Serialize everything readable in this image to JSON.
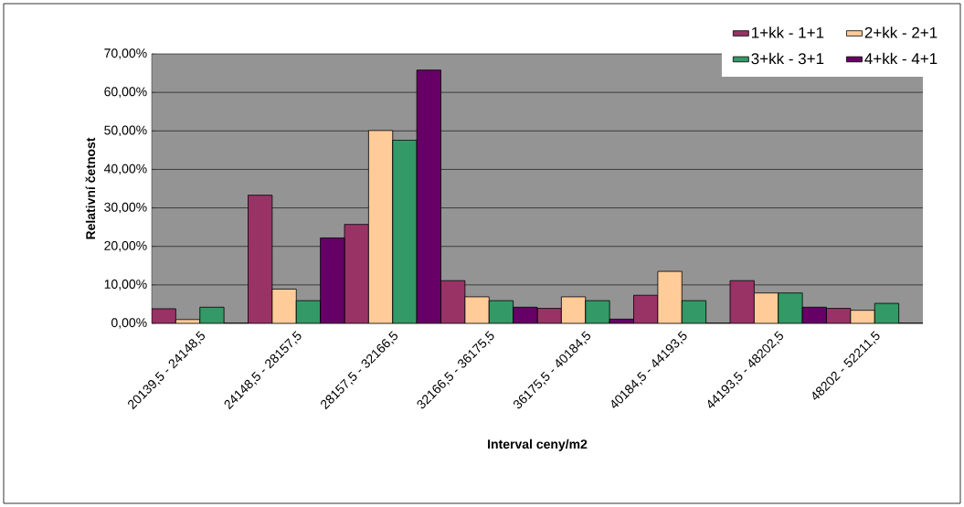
{
  "chart_data": {
    "type": "bar",
    "xlabel": "Interval ceny/m2",
    "ylabel": "Relativní četnost",
    "categories": [
      "20139,5 - 24148,5",
      "24148,5 - 28157,5",
      "28157,5 - 32166,5",
      "32166,5 - 36175,5",
      "36175,5 - 40184,5",
      "40184,5 - 44193,5",
      "44193,5 - 48202,5",
      "48202 - 52211,5"
    ],
    "series": [
      {
        "name": "1+kk - 1+1",
        "color": "#993366",
        "values": [
          3.8,
          33.3,
          25.7,
          11.1,
          3.9,
          7.3,
          11.1,
          3.9
        ]
      },
      {
        "name": "2+kk - 2+1",
        "color": "#ffcc99",
        "values": [
          1.0,
          8.9,
          50.1,
          6.9,
          6.9,
          13.5,
          7.9,
          3.4
        ]
      },
      {
        "name": "3+kk - 3+1",
        "color": "#339966",
        "values": [
          4.2,
          5.9,
          47.6,
          5.9,
          5.9,
          5.9,
          7.9,
          5.2
        ]
      },
      {
        "name": "4+kk - 4+1",
        "color": "#660066",
        "values": [
          0,
          22.2,
          65.8,
          4.2,
          1.1,
          0,
          4.2,
          0
        ]
      }
    ],
    "ylim": [
      0,
      70
    ],
    "yticks": [
      {
        "value": 0,
        "label": "0,00%"
      },
      {
        "value": 10,
        "label": "10,00%"
      },
      {
        "value": 20,
        "label": "20,00%"
      },
      {
        "value": 30,
        "label": "30,00%"
      },
      {
        "value": 40,
        "label": "40,00%"
      },
      {
        "value": 50,
        "label": "50,00%"
      },
      {
        "value": 60,
        "label": "60,00%"
      },
      {
        "value": 70,
        "label": "70,00%"
      }
    ],
    "grid": "y",
    "legend": "top right"
  }
}
